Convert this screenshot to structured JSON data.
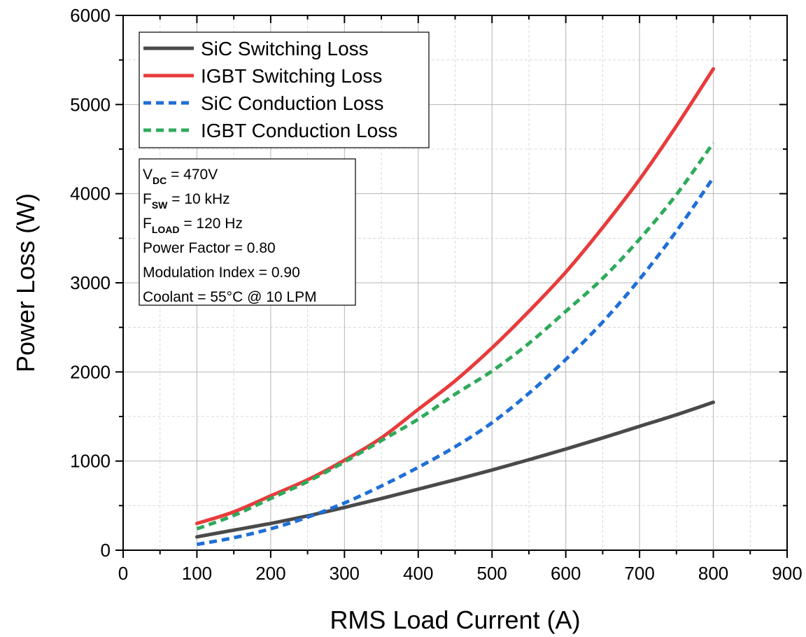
{
  "chart_data": {
    "type": "line",
    "xlabel": "RMS Load Current (A)",
    "ylabel": "Power Loss (W)",
    "xlim": [
      0,
      900
    ],
    "ylim": [
      0,
      6000
    ],
    "xticks": [
      0,
      100,
      200,
      300,
      400,
      500,
      600,
      700,
      800,
      900
    ],
    "yticks": [
      0,
      1000,
      2000,
      3000,
      4000,
      5000,
      6000
    ],
    "x_tick_labels": [
      "0",
      "100",
      "200",
      "300",
      "400",
      "500",
      "600",
      "700",
      "800",
      "900"
    ],
    "y_tick_labels": [
      "0",
      "1000",
      "2000",
      "3000",
      "4000",
      "5000",
      "6000"
    ],
    "grid": true,
    "legend_position": "top-left",
    "series": [
      {
        "name": "SiC Switching Loss",
        "color": "#4a4a4a",
        "dash": "solid",
        "x": [
          100,
          150,
          200,
          250,
          300,
          350,
          400,
          450,
          500,
          550,
          600,
          650,
          700,
          750,
          800
        ],
        "y": [
          150,
          225,
          300,
          385,
          480,
          580,
          685,
          790,
          900,
          1015,
          1135,
          1260,
          1390,
          1520,
          1660
        ]
      },
      {
        "name": "IGBT Switching Loss",
        "color": "#e83b3b",
        "dash": "solid",
        "x": [
          100,
          150,
          200,
          250,
          300,
          350,
          400,
          450,
          500,
          550,
          600,
          650,
          700,
          750,
          800
        ],
        "y": [
          300,
          430,
          610,
          790,
          1010,
          1260,
          1580,
          1900,
          2270,
          2680,
          3120,
          3620,
          4160,
          4760,
          5400
        ]
      },
      {
        "name": "SiC Conduction Loss",
        "color": "#1f6fd6",
        "dash": "dashed",
        "x": [
          100,
          150,
          200,
          250,
          300,
          350,
          400,
          450,
          500,
          550,
          600,
          650,
          700,
          750,
          800
        ],
        "y": [
          65,
          140,
          240,
          370,
          530,
          720,
          930,
          1160,
          1430,
          1760,
          2140,
          2560,
          3040,
          3580,
          4180
        ]
      },
      {
        "name": "IGBT Conduction Loss",
        "color": "#2eaa5a",
        "dash": "dashed",
        "x": [
          100,
          150,
          200,
          250,
          300,
          350,
          400,
          450,
          500,
          550,
          600,
          650,
          700,
          750,
          800
        ],
        "y": [
          240,
          390,
          580,
          770,
          990,
          1230,
          1470,
          1750,
          2010,
          2320,
          2680,
          3050,
          3490,
          3990,
          4570
        ]
      }
    ],
    "annotation": {
      "lines": [
        {
          "main": "V",
          "sub": "DC",
          "rest": " = 470V"
        },
        {
          "main": "F",
          "sub": "SW",
          "rest": " = 10 kHz"
        },
        {
          "main": "F",
          "sub": "LOAD",
          "rest": " = 120 Hz"
        },
        {
          "main": "Power Factor = 0.80",
          "sub": "",
          "rest": ""
        },
        {
          "main": "Modulation Index = 0.90",
          "sub": "",
          "rest": ""
        },
        {
          "main": "Coolant = 55°C @ 10 LPM",
          "sub": "",
          "rest": ""
        }
      ]
    }
  }
}
